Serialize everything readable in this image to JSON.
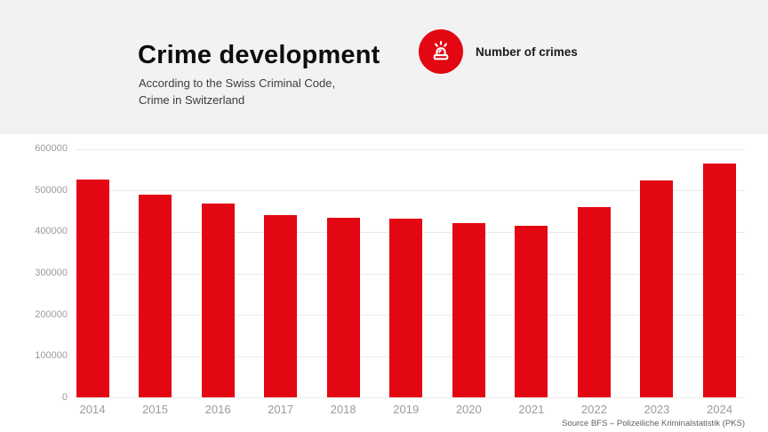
{
  "header": {
    "title": "Crime development",
    "subtitle_line1": "According to the Swiss Criminal Code,",
    "subtitle_line2": "Crime in Switzerland",
    "legend_label": "Number of crimes",
    "legend_icon": "siren-icon"
  },
  "colors": {
    "accent_red": "#e30613",
    "header_bg": "#f2f2f2",
    "gridline": "#ebebeb",
    "tick_text": "#9b9b9b",
    "source_text": "#5f5f5f"
  },
  "source_note": "Source BFS – Polizeiliche Kriminalstatistik (PKS)",
  "chart_data": {
    "type": "bar",
    "title": "Crime development",
    "subtitle": "According to the Swiss Criminal Code, Crime in Switzerland",
    "series_name": "Number of crimes",
    "categories": [
      "2014",
      "2015",
      "2016",
      "2017",
      "2018",
      "2019",
      "2020",
      "2021",
      "2022",
      "2023",
      "2024"
    ],
    "values": [
      526000,
      488000,
      467000,
      439000,
      432000,
      430000,
      421000,
      414000,
      458000,
      522000,
      564000
    ],
    "xlabel": "",
    "ylabel": "",
    "ylim": [
      0,
      600000
    ],
    "yticks": [
      0,
      100000,
      200000,
      300000,
      400000,
      500000,
      600000
    ],
    "grid": "horizontal",
    "legend_position": "top",
    "bar_color": "#e30613"
  }
}
